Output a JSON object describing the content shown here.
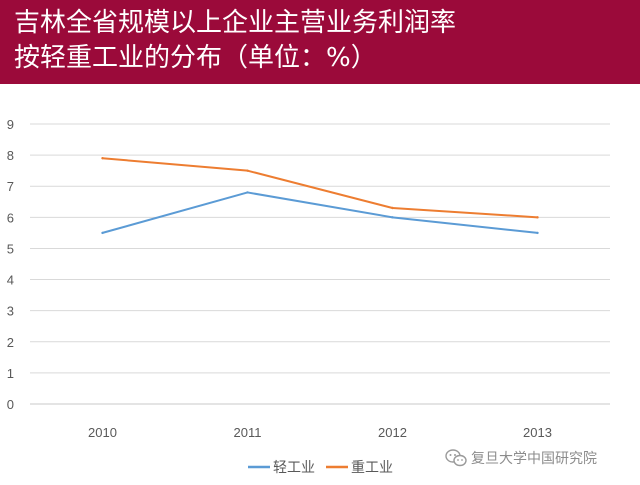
{
  "header": {
    "title_line1": "吉林全省规模以上企业主营业务利润率",
    "title_line2": "按轻重工业的分布（单位：%）"
  },
  "chart_data": {
    "type": "line",
    "title": "吉林全省规模以上企业主营业务利润率按轻重工业的分布（单位：%）",
    "x": [
      "2010",
      "2011",
      "2012",
      "2013"
    ],
    "series": [
      {
        "name": "轻工业",
        "values": [
          5.5,
          6.8,
          6.0,
          5.5
        ],
        "color": "#5b9bd5"
      },
      {
        "name": "重工业",
        "values": [
          7.9,
          7.5,
          6.3,
          6.0
        ],
        "color": "#ed7d31"
      }
    ],
    "ylim": [
      0,
      9
    ],
    "yticks": [
      0,
      1,
      2,
      3,
      4,
      5,
      6,
      7,
      8,
      9
    ],
    "grid": true,
    "legend": "bottom-center",
    "xlabel": "",
    "ylabel": ""
  },
  "watermark": {
    "text": "复旦大学中国研究院"
  }
}
